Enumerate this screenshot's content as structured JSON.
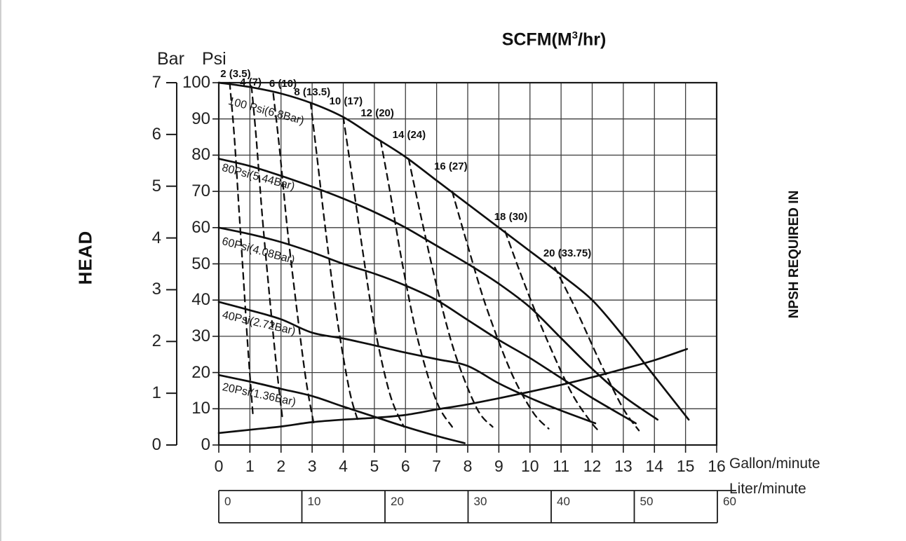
{
  "page": {
    "background": "#ffffff"
  },
  "chart_data": {
    "type": "line",
    "title_parts": {
      "pre": "SCFM(M",
      "sup": "3",
      "post": "/hr)"
    },
    "colors": {
      "line": "#0f0f0f",
      "grid": "#3d3d3d",
      "frame": "#1a1a1a",
      "text": "#1a1a1a"
    },
    "axes": {
      "bar": {
        "label": "Bar",
        "range": [
          0,
          7
        ],
        "ticks": [
          0,
          1,
          2,
          3,
          4,
          5,
          6,
          7
        ]
      },
      "psi": {
        "label": "Psi",
        "range": [
          0,
          100
        ],
        "ticks": [
          0,
          10,
          20,
          30,
          40,
          50,
          60,
          70,
          80,
          90,
          100
        ]
      },
      "gallon": {
        "label": "Gallon/minute",
        "range": [
          0,
          16
        ],
        "ticks": [
          0,
          1,
          2,
          3,
          4,
          5,
          6,
          7,
          8,
          9,
          10,
          11,
          12,
          13,
          14,
          15,
          16
        ]
      },
      "liter": {
        "label": "Liter/minute",
        "ticks": [
          0,
          10,
          20,
          30,
          40,
          50,
          60
        ]
      },
      "head_label": "HEAD",
      "npsh_label": "NPSH REQUIRED IN"
    },
    "grid": true,
    "pressure_curves": [
      {
        "label": "100 Psi(6.8Bar)",
        "label_pos": [
          0.35,
          96.5
        ],
        "label_rotation": 15,
        "points": [
          [
            0,
            100
          ],
          [
            1,
            98.8
          ],
          [
            2,
            97
          ],
          [
            3,
            94.3
          ],
          [
            4,
            90.5
          ],
          [
            5,
            85
          ],
          [
            6,
            79.5
          ],
          [
            7,
            73
          ],
          [
            8,
            66.5
          ],
          [
            9,
            60
          ],
          [
            10,
            53.5
          ],
          [
            11,
            47
          ],
          [
            12,
            40
          ],
          [
            13,
            30
          ],
          [
            14,
            19
          ],
          [
            15.1,
            7
          ]
        ]
      },
      {
        "label": "80Psi(5.44Bar)",
        "label_pos": [
          0.15,
          78.2
        ],
        "label_rotation": 15,
        "points": [
          [
            0,
            79
          ],
          [
            1,
            77
          ],
          [
            2,
            74.3
          ],
          [
            3,
            71.3
          ],
          [
            4,
            68
          ],
          [
            5,
            64.3
          ],
          [
            6,
            60
          ],
          [
            7,
            55
          ],
          [
            8,
            50
          ],
          [
            9,
            44.5
          ],
          [
            10,
            38
          ],
          [
            11,
            29.5
          ],
          [
            12,
            21
          ],
          [
            13,
            13.5
          ],
          [
            14.1,
            7
          ]
        ]
      },
      {
        "label": "60Psi(4.08Bar)",
        "label_pos": [
          0.15,
          57.8
        ],
        "label_rotation": 15,
        "points": [
          [
            0,
            60
          ],
          [
            1,
            58.2
          ],
          [
            2,
            56
          ],
          [
            3,
            53.2
          ],
          [
            4,
            50
          ],
          [
            5,
            47.3
          ],
          [
            6,
            44
          ],
          [
            7,
            40
          ],
          [
            8,
            34.5
          ],
          [
            9,
            29
          ],
          [
            10,
            24
          ],
          [
            11,
            18.5
          ],
          [
            12,
            13
          ],
          [
            13.4,
            6
          ]
        ]
      },
      {
        "label": "40Psi(2.72Bar)",
        "label_pos": [
          0.15,
          37.5
        ],
        "label_rotation": 13,
        "points": [
          [
            0,
            39.5
          ],
          [
            1,
            37.2
          ],
          [
            2,
            34.7
          ],
          [
            3,
            31
          ],
          [
            4,
            29.4
          ],
          [
            5,
            27.5
          ],
          [
            6,
            25.5
          ],
          [
            7,
            23.7
          ],
          [
            8,
            21.8
          ],
          [
            9,
            17
          ],
          [
            10,
            13
          ],
          [
            11,
            9.5
          ],
          [
            12.1,
            6
          ]
        ]
      },
      {
        "label": "20Psi(1.36Bar)",
        "label_pos": [
          0.15,
          17.6
        ],
        "label_rotation": 12,
        "points": [
          [
            0,
            19.3
          ],
          [
            1,
            17.5
          ],
          [
            2,
            15.5
          ],
          [
            3,
            13.5
          ],
          [
            4,
            10.6
          ],
          [
            5,
            7.8
          ],
          [
            6,
            5
          ],
          [
            7,
            2.5
          ],
          [
            7.9,
            0.5
          ]
        ]
      }
    ],
    "scfm_curves": [
      {
        "label": "2 (3.5)",
        "scfm": 2,
        "m3hr": 3.5,
        "label_pos": [
          0.05,
          104
        ],
        "points": [
          [
            0.35,
            100
          ],
          [
            0.5,
            85
          ],
          [
            0.65,
            65
          ],
          [
            0.8,
            45
          ],
          [
            0.95,
            25
          ],
          [
            1.1,
            8
          ]
        ]
      },
      {
        "label": "4 (7)",
        "scfm": 4,
        "m3hr": 7,
        "label_pos": [
          0.68,
          101.7
        ],
        "points": [
          [
            1.05,
            99
          ],
          [
            1.2,
            85
          ],
          [
            1.4,
            63
          ],
          [
            1.62,
            42
          ],
          [
            1.85,
            22
          ],
          [
            2.05,
            7
          ]
        ]
      },
      {
        "label": "6 (10)",
        "scfm": 6,
        "m3hr": 10,
        "label_pos": [
          1.62,
          101.3
        ],
        "points": [
          [
            1.75,
            97
          ],
          [
            1.95,
            82
          ],
          [
            2.2,
            60
          ],
          [
            2.5,
            38
          ],
          [
            2.8,
            18
          ],
          [
            3.05,
            6
          ]
        ]
      },
      {
        "label": "8 (13.5)",
        "scfm": 8,
        "m3hr": 13.5,
        "label_pos": [
          2.42,
          99
        ],
        "points": [
          [
            2.95,
            94.5
          ],
          [
            3.15,
            80
          ],
          [
            3.45,
            58
          ],
          [
            3.8,
            35
          ],
          [
            4.2,
            15
          ],
          [
            4.5,
            6
          ]
        ]
      },
      {
        "label": "10 (17)",
        "scfm": 10,
        "m3hr": 17,
        "label_pos": [
          3.55,
          96.6
        ],
        "points": [
          [
            4.0,
            90.5
          ],
          [
            4.25,
            76
          ],
          [
            4.6,
            55
          ],
          [
            5.0,
            33
          ],
          [
            5.5,
            14
          ],
          [
            5.95,
            5
          ]
        ]
      },
      {
        "label": "12 (20)",
        "scfm": 12,
        "m3hr": 20,
        "label_pos": [
          4.56,
          93.2
        ],
        "points": [
          [
            5.2,
            84
          ],
          [
            5.5,
            70
          ],
          [
            5.9,
            50
          ],
          [
            6.4,
            29
          ],
          [
            7.0,
            12
          ],
          [
            7.5,
            5
          ]
        ]
      },
      {
        "label": "14 (24)",
        "scfm": 14,
        "m3hr": 24,
        "label_pos": [
          5.58,
          87.3
        ],
        "points": [
          [
            6.1,
            79
          ],
          [
            6.5,
            63
          ],
          [
            7.0,
            44
          ],
          [
            7.6,
            25
          ],
          [
            8.3,
            10
          ],
          [
            8.8,
            5
          ]
        ]
      },
      {
        "label": "16 (27)",
        "scfm": 16,
        "m3hr": 27,
        "label_pos": [
          6.92,
          78.6
        ],
        "points": [
          [
            7.5,
            70
          ],
          [
            8.0,
            55
          ],
          [
            8.6,
            38
          ],
          [
            9.4,
            20
          ],
          [
            10.1,
            9
          ],
          [
            10.6,
            4.5
          ]
        ]
      },
      {
        "label": "18 (30)",
        "scfm": 18,
        "m3hr": 30,
        "label_pos": [
          8.85,
          64.6
        ],
        "points": [
          [
            9.2,
            59
          ],
          [
            9.8,
            45
          ],
          [
            10.5,
            30
          ],
          [
            11.3,
            15
          ],
          [
            11.9,
            7
          ],
          [
            12.25,
            3.5
          ]
        ]
      },
      {
        "label": "20 (33.75)",
        "scfm": 20,
        "m3hr": 33.75,
        "label_pos": [
          10.43,
          54.6
        ],
        "points": [
          [
            10.8,
            49
          ],
          [
            11.5,
            37
          ],
          [
            12.3,
            22
          ],
          [
            13.0,
            10
          ],
          [
            13.5,
            4
          ]
        ]
      }
    ],
    "npsh_curve": {
      "points": [
        [
          0,
          3.3
        ],
        [
          1,
          4.2
        ],
        [
          2,
          5.1
        ],
        [
          3,
          6.3
        ],
        [
          4,
          7.0
        ],
        [
          5,
          7.5
        ],
        [
          6,
          8.3
        ],
        [
          7,
          9.8
        ],
        [
          8,
          11.2
        ],
        [
          9,
          12.9
        ],
        [
          10,
          14.7
        ],
        [
          11,
          16.6
        ],
        [
          12,
          18.7
        ],
        [
          13,
          21
        ],
        [
          14,
          23.4
        ],
        [
          15.05,
          26.5
        ]
      ]
    }
  }
}
